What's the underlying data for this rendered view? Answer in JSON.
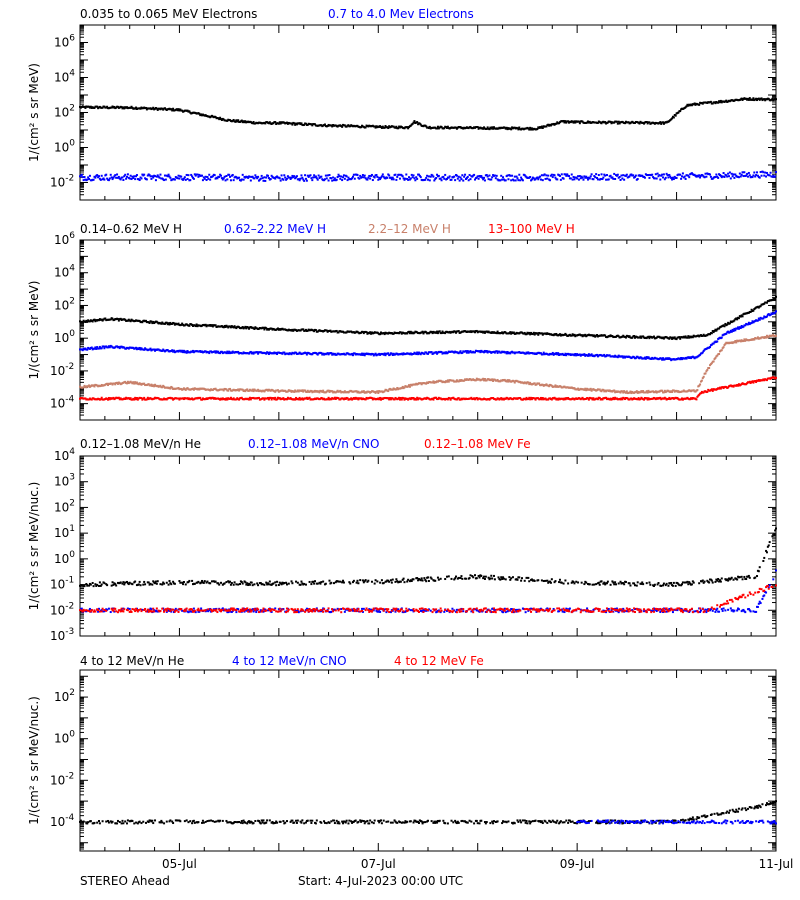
{
  "chart_data": [
    {
      "type": "scatter",
      "ylabel": "1/(cm² s sr MeV)",
      "yscale": "log",
      "ylim": [
        0.001,
        10000000
      ],
      "xlim": [
        "2023-07-04",
        "2023-07-11"
      ],
      "legend": [
        {
          "name": "0.035 to 0.065 MeV Electrons",
          "color": "#000000"
        },
        {
          "name": "0.7 to 4.0 Mev Electrons",
          "color": "#0000ff"
        }
      ],
      "yticks": [
        {
          "v": 1000000,
          "m": "10",
          "e": "6"
        },
        {
          "v": 10000,
          "m": "10",
          "e": "4"
        },
        {
          "v": 100,
          "m": "10",
          "e": "2"
        },
        {
          "v": 1,
          "m": "10",
          "e": "0"
        },
        {
          "v": 0.01,
          "m": "10",
          "e": "-2"
        }
      ],
      "series": [
        {
          "color": "#000000",
          "x": [
            0,
            0.5,
            1,
            1.5,
            1.8,
            2,
            2.5,
            3,
            3.3,
            3.36,
            3.5,
            4,
            4.6,
            4.85,
            5,
            5.5,
            5.9,
            6.1,
            6.2,
            6.5,
            6.7,
            7
          ],
          "y": [
            200,
            190,
            140,
            35,
            25,
            25,
            18,
            15,
            14,
            30,
            14,
            13,
            12,
            30,
            28,
            26,
            25,
            250,
            300,
            450,
            600,
            550
          ]
        },
        {
          "color": "#0000ff",
          "x": [
            0,
            1,
            2,
            3,
            4,
            5,
            6,
            6.5,
            7
          ],
          "y": [
            0.02,
            0.02,
            0.018,
            0.02,
            0.019,
            0.02,
            0.022,
            0.025,
            0.03
          ]
        }
      ]
    },
    {
      "type": "scatter",
      "ylabel": "1/(cm² s sr MeV)",
      "yscale": "log",
      "ylim": [
        1e-05,
        1000000
      ],
      "xlim": [
        "2023-07-04",
        "2023-07-11"
      ],
      "legend": [
        {
          "name": "0.14–0.62 MeV H",
          "color": "#000000"
        },
        {
          "name": "0.62–2.22 MeV H",
          "color": "#0000ff"
        },
        {
          "name": "2.2–12 MeV H",
          "color": "#c8806a"
        },
        {
          "name": "13–100 MeV H",
          "color": "#ff0000"
        }
      ],
      "yticks": [
        {
          "v": 1000000,
          "m": "10",
          "e": "6"
        },
        {
          "v": 10000,
          "m": "10",
          "e": "4"
        },
        {
          "v": 100,
          "m": "10",
          "e": "2"
        },
        {
          "v": 1,
          "m": "10",
          "e": "0"
        },
        {
          "v": 0.01,
          "m": "10",
          "e": "-2"
        },
        {
          "v": 0.0001,
          "m": "10",
          "e": "-4"
        }
      ],
      "series": [
        {
          "color": "#000000",
          "x": [
            0,
            0.3,
            1,
            2,
            3,
            4,
            5,
            6,
            6.3,
            6.6,
            7
          ],
          "y": [
            10,
            15,
            7,
            3.5,
            2,
            2.5,
            1.5,
            1,
            1.5,
            15,
            300
          ]
        },
        {
          "color": "#0000ff",
          "x": [
            0,
            0.3,
            1,
            2,
            3,
            4,
            5,
            6,
            6.2,
            6.5,
            7
          ],
          "y": [
            0.2,
            0.3,
            0.15,
            0.12,
            0.1,
            0.15,
            0.1,
            0.05,
            0.07,
            2,
            40
          ]
        },
        {
          "color": "#c8806a",
          "x": [
            0,
            0.5,
            1,
            2,
            3,
            3.5,
            4,
            4.3,
            5,
            5.5,
            6.2,
            6.3,
            6.5,
            7
          ],
          "y": [
            0.001,
            0.002,
            0.0008,
            0.0006,
            0.0005,
            0.002,
            0.003,
            0.0025,
            0.0008,
            0.0005,
            0.0006,
            0.01,
            0.5,
            1.5
          ]
        },
        {
          "color": "#ff0000",
          "x": [
            0,
            1,
            2,
            3,
            4,
            5,
            6.2,
            6.25,
            6.5,
            7
          ],
          "y": [
            0.0002,
            0.0002,
            0.0002,
            0.0002,
            0.0002,
            0.0002,
            0.0002,
            0.0005,
            0.001,
            0.004
          ]
        }
      ]
    },
    {
      "type": "scatter",
      "ylabel": "1/(cm² s sr MeV/nuc.)",
      "yscale": "log",
      "ylim": [
        0.001,
        10000
      ],
      "xlim": [
        "2023-07-04",
        "2023-07-11"
      ],
      "legend": [
        {
          "name": "0.12–1.08 MeV/n He",
          "color": "#000000"
        },
        {
          "name": "0.12–1.08 MeV/n CNO",
          "color": "#0000ff"
        },
        {
          "name": "0.12–1.08 MeV Fe",
          "color": "#ff0000"
        }
      ],
      "yticks": [
        {
          "v": 10000,
          "m": "10",
          "e": "4"
        },
        {
          "v": 1000,
          "m": "10",
          "e": "3"
        },
        {
          "v": 100,
          "m": "10",
          "e": "2"
        },
        {
          "v": 10,
          "m": "10",
          "e": "1"
        },
        {
          "v": 1,
          "m": "10",
          "e": "0"
        },
        {
          "v": 0.1,
          "m": "10",
          "e": "-1"
        },
        {
          "v": 0.01,
          "m": "10",
          "e": "-2"
        },
        {
          "v": 0.001,
          "m": "10",
          "e": "-3"
        }
      ],
      "series": [
        {
          "color": "#000000",
          "x": [
            0,
            1,
            2,
            3,
            4,
            5,
            6,
            6.8,
            7
          ],
          "y": [
            0.1,
            0.12,
            0.11,
            0.13,
            0.2,
            0.12,
            0.1,
            0.2,
            15
          ]
        },
        {
          "color": "#0000ff",
          "x": [
            0,
            1,
            2,
            3,
            4,
            5,
            6,
            6.8,
            7
          ],
          "y": [
            0.01,
            0.01,
            0.01,
            0.01,
            0.01,
            0.01,
            0.01,
            0.01,
            0.3
          ]
        },
        {
          "color": "#ff0000",
          "x": [
            0,
            2.5,
            5.6,
            6.3,
            7
          ],
          "y": [
            0.01,
            0.01,
            0.01,
            0.01,
            0.1
          ]
        }
      ]
    },
    {
      "type": "scatter",
      "ylabel": "1/(cm² s sr MeV/nuc.)",
      "yscale": "log",
      "ylim": [
        4e-06,
        2000
      ],
      "xlim": [
        "2023-07-04",
        "2023-07-11"
      ],
      "legend": [
        {
          "name": "4 to 12 MeV/n He",
          "color": "#000000"
        },
        {
          "name": "4 to 12 MeV/n CNO",
          "color": "#0000ff"
        },
        {
          "name": "4 to 12 MeV Fe",
          "color": "#ff0000"
        }
      ],
      "yticks": [
        {
          "v": 100,
          "m": "10",
          "e": "2"
        },
        {
          "v": 1,
          "m": "10",
          "e": "0"
        },
        {
          "v": 0.01,
          "m": "10",
          "e": "-2"
        },
        {
          "v": 0.0001,
          "m": "10",
          "e": "-4"
        }
      ],
      "series": [
        {
          "color": "#000000",
          "x": [
            0,
            1,
            2,
            3,
            4,
            5,
            6,
            6.3,
            6.5,
            6.8,
            7
          ],
          "y": [
            0.0001,
            0.0001,
            0.0001,
            0.0001,
            0.0001,
            0.0001,
            0.0001,
            0.0002,
            0.0003,
            0.0005,
            0.001
          ]
        },
        {
          "color": "#0000ff",
          "x": [
            5,
            6,
            7
          ],
          "y": [
            0.0001,
            0.0001,
            0.0001
          ]
        }
      ]
    }
  ],
  "xticks": [
    {
      "d": 1,
      "label": "05-Jul"
    },
    {
      "d": 3,
      "label": "07-Jul"
    },
    {
      "d": 5,
      "label": "09-Jul"
    },
    {
      "d": 7,
      "label": "11-Jul"
    }
  ],
  "footer": {
    "left": "STEREO Ahead",
    "center": "Start:  4-Jul-2023 00:00 UTC"
  }
}
